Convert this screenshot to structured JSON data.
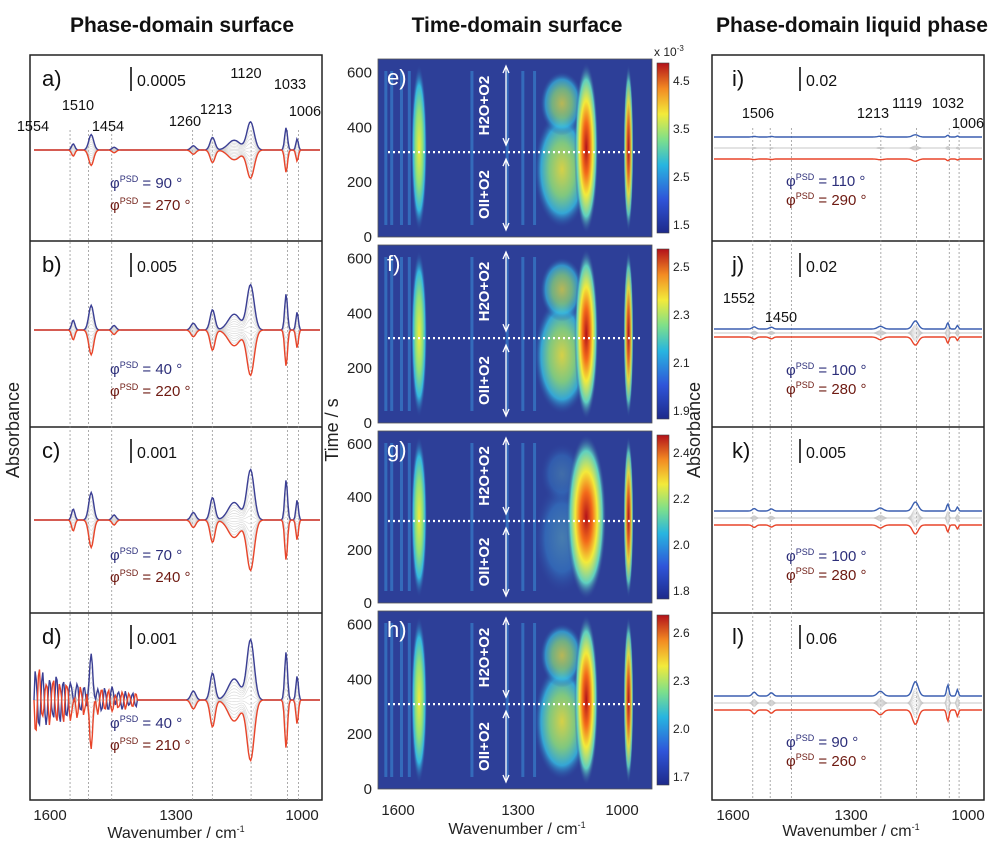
{
  "titles": {
    "left": "Phase-domain surface",
    "middle": "Time-domain surface",
    "right": "Phase-domain liquid phase"
  },
  "axes": {
    "xlabel": "Wavenumber / cm",
    "xlabel_sup": "-1",
    "absorbance": "Absorbance",
    "time": "Time / s",
    "x_ticks": [
      "1600",
      "1300",
      "1000"
    ],
    "time_ticks": [
      "600",
      "400",
      "200",
      "0"
    ],
    "cb_multiplier": "x 10",
    "cb_multiplier_sup": "-3"
  },
  "conditions": {
    "upper": "H2O+O2",
    "lower": "OII+O2"
  },
  "phase_prefix": "φ",
  "phase_sup": "PSD",
  "chart_data": [
    {
      "type": "line",
      "panel": "a)",
      "scale_bar": "0.0005",
      "peaks": [
        "1554",
        "1510",
        "1454",
        "1260",
        "1213",
        "1120",
        "1033",
        "1006"
      ],
      "series": [
        {
          "name": "φPSD = 90 °",
          "color": "#3b3f94"
        },
        {
          "name": "φPSD = 270 °",
          "color": "#e8452a"
        }
      ],
      "phase_labels": [
        "= 90 °",
        "= 270 °"
      ],
      "xlim": [
        1650,
        950
      ],
      "xlabel": "Wavenumber / cm-1",
      "ylabel": "Absorbance"
    },
    {
      "type": "line",
      "panel": "b)",
      "scale_bar": "0.005",
      "series": [
        {
          "name": "φPSD = 40 °",
          "color": "#3b3f94"
        },
        {
          "name": "φPSD = 220 °",
          "color": "#e8452a"
        }
      ],
      "phase_labels": [
        "= 40 °",
        "= 220 °"
      ]
    },
    {
      "type": "line",
      "panel": "c)",
      "scale_bar": "0.001",
      "series": [
        {
          "name": "φPSD = 70 °",
          "color": "#3b3f94"
        },
        {
          "name": "φPSD = 240 °",
          "color": "#e8452a"
        }
      ],
      "phase_labels": [
        "= 70 °",
        "= 240 °"
      ]
    },
    {
      "type": "line",
      "panel": "d)",
      "scale_bar": "0.001",
      "series": [
        {
          "name": "φPSD = 40 °",
          "color": "#3b3f94"
        },
        {
          "name": "φPSD = 210 °",
          "color": "#e8452a"
        }
      ],
      "phase_labels": [
        "= 40 °",
        "= 210 °"
      ]
    },
    {
      "type": "heatmap",
      "panel": "e)",
      "colorbar_ticks": [
        "4.5",
        "3.5",
        "2.5",
        "1.5"
      ],
      "ylim": [
        0,
        650
      ],
      "xlim": [
        1650,
        950
      ],
      "switch_time": 310
    },
    {
      "type": "heatmap",
      "panel": "f)",
      "colorbar_ticks": [
        "2.5",
        "2.3",
        "2.1",
        "1.9"
      ],
      "ylim": [
        0,
        650
      ],
      "xlim": [
        1650,
        950
      ],
      "switch_time": 310
    },
    {
      "type": "heatmap",
      "panel": "g)",
      "colorbar_ticks": [
        "2.4",
        "2.2",
        "2.0",
        "1.8"
      ],
      "ylim": [
        0,
        650
      ],
      "xlim": [
        1650,
        950
      ],
      "switch_time": 310
    },
    {
      "type": "heatmap",
      "panel": "h)",
      "colorbar_ticks": [
        "2.6",
        "2.3",
        "2.0",
        "1.7"
      ],
      "ylim": [
        0,
        650
      ],
      "xlim": [
        1650,
        950
      ],
      "switch_time": 310
    },
    {
      "type": "line",
      "panel": "i)",
      "scale_bar": "0.02",
      "peaks": [
        "1506",
        "1213",
        "1119",
        "1032",
        "1006"
      ],
      "series": [
        {
          "name": "φPSD = 110 °",
          "color": "#3b5fb0"
        },
        {
          "name": "φPSD = 290 °",
          "color": "#e8452a"
        }
      ],
      "phase_labels": [
        "= 110 °",
        "= 290 °"
      ]
    },
    {
      "type": "line",
      "panel": "j)",
      "scale_bar": "0.02",
      "peaks": [
        "1552",
        "1450"
      ],
      "series": [
        {
          "name": "φPSD = 100 °",
          "color": "#3b5fb0"
        },
        {
          "name": "φPSD = 280 °",
          "color": "#e8452a"
        }
      ],
      "phase_labels": [
        "= 100 °",
        "= 280 °"
      ]
    },
    {
      "type": "line",
      "panel": "k)",
      "scale_bar": "0.005",
      "series": [
        {
          "name": "φPSD = 100 °",
          "color": "#3b5fb0"
        },
        {
          "name": "φPSD = 280 °",
          "color": "#e8452a"
        }
      ],
      "phase_labels": [
        "= 100 °",
        "= 280 °"
      ]
    },
    {
      "type": "line",
      "panel": "l)",
      "scale_bar": "0.06",
      "series": [
        {
          "name": "φPSD = 90 °",
          "color": "#3b5fb0"
        },
        {
          "name": "φPSD = 260 °",
          "color": "#e8452a"
        }
      ],
      "phase_labels": [
        "= 90 °",
        "= 260 °"
      ]
    }
  ],
  "colors": {
    "blue_series": "#3b3f94",
    "red_series": "#e8452a",
    "envelope": "#c8c8c8",
    "heatmap_bg": "#2d3f98",
    "switch_line": "#ffffff"
  }
}
